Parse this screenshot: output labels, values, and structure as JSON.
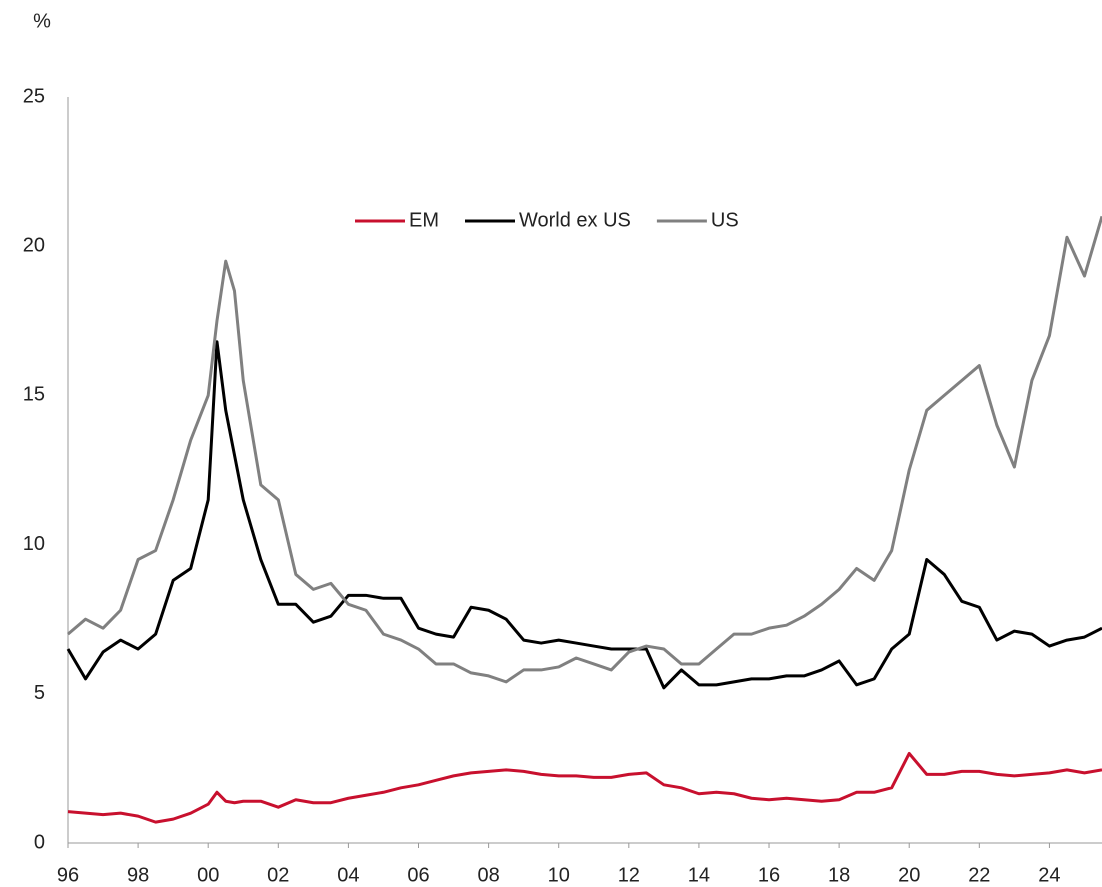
{
  "chart_data": {
    "type": "line",
    "y_label": "%",
    "x": [
      1996,
      1996.5,
      1997,
      1997.5,
      1998,
      1998.5,
      1999,
      1999.5,
      2000,
      2000.25,
      2000.5,
      2000.75,
      2001,
      2001.5,
      2002,
      2002.5,
      2003,
      2003.5,
      2004,
      2004.5,
      2005,
      2005.5,
      2006,
      2006.5,
      2007,
      2007.5,
      2008,
      2008.5,
      2009,
      2009.5,
      2010,
      2010.5,
      2011,
      2011.5,
      2012,
      2012.5,
      2013,
      2013.5,
      2014,
      2014.5,
      2015,
      2015.5,
      2016,
      2016.5,
      2017,
      2017.5,
      2018,
      2018.5,
      2019,
      2019.5,
      2020,
      2020.5,
      2021,
      2021.5,
      2022,
      2022.5,
      2023,
      2023.5,
      2024,
      2024.5,
      2025,
      2025.5
    ],
    "series": [
      {
        "name": "EM",
        "color": "#c8102e",
        "values": [
          1.05,
          1.0,
          0.95,
          1.0,
          0.9,
          0.7,
          0.8,
          1.0,
          1.3,
          1.7,
          1.4,
          1.35,
          1.4,
          1.4,
          1.2,
          1.45,
          1.35,
          1.35,
          1.5,
          1.6,
          1.7,
          1.85,
          1.95,
          2.1,
          2.25,
          2.35,
          2.4,
          2.45,
          2.4,
          2.3,
          2.25,
          2.25,
          2.2,
          2.2,
          2.3,
          2.35,
          1.95,
          1.85,
          1.65,
          1.7,
          1.65,
          1.5,
          1.45,
          1.5,
          1.45,
          1.4,
          1.45,
          1.7,
          1.7,
          1.85,
          3.0,
          2.3,
          2.3,
          2.4,
          2.4,
          2.3,
          2.25,
          2.3,
          2.35,
          2.45,
          2.35,
          2.45
        ]
      },
      {
        "name": "World ex US",
        "color": "#000000",
        "values": [
          6.5,
          5.5,
          6.4,
          6.8,
          6.5,
          7.0,
          8.8,
          9.2,
          11.5,
          16.8,
          14.5,
          13.0,
          11.5,
          9.5,
          8.0,
          8.0,
          7.4,
          7.6,
          8.3,
          8.3,
          8.2,
          8.2,
          7.2,
          7.0,
          6.9,
          7.9,
          7.8,
          7.5,
          6.8,
          6.7,
          6.8,
          6.7,
          6.6,
          6.5,
          6.5,
          6.5,
          5.2,
          5.8,
          5.3,
          5.3,
          5.4,
          5.5,
          5.5,
          5.6,
          5.6,
          5.8,
          6.1,
          5.3,
          5.5,
          6.5,
          7.0,
          9.5,
          9.0,
          8.1,
          7.9,
          6.8,
          7.1,
          7.0,
          6.6,
          6.8,
          6.9,
          7.2
        ]
      },
      {
        "name": "US",
        "color": "#808080",
        "values": [
          7.0,
          7.5,
          7.2,
          7.8,
          9.5,
          9.8,
          11.5,
          13.5,
          15.0,
          17.5,
          19.5,
          18.5,
          15.5,
          12.0,
          11.5,
          9.0,
          8.5,
          8.7,
          8.0,
          7.8,
          7.0,
          6.8,
          6.5,
          6.0,
          6.0,
          5.7,
          5.6,
          5.4,
          5.8,
          5.8,
          5.9,
          6.2,
          6.0,
          5.8,
          6.4,
          6.6,
          6.5,
          6.0,
          6.0,
          6.5,
          7.0,
          7.0,
          7.2,
          7.3,
          7.6,
          8.0,
          8.5,
          9.2,
          8.8,
          9.8,
          12.5,
          14.5,
          15.0,
          15.5,
          16.0,
          14.0,
          12.6,
          15.5,
          17.0,
          20.3,
          19.0,
          21.0
        ]
      }
    ],
    "xlim": [
      1996,
      2025.5
    ],
    "xticks": [
      {
        "value": 1996,
        "label": "96"
      },
      {
        "value": 1998,
        "label": "98"
      },
      {
        "value": 2000,
        "label": "00"
      },
      {
        "value": 2002,
        "label": "02"
      },
      {
        "value": 2004,
        "label": "04"
      },
      {
        "value": 2006,
        "label": "06"
      },
      {
        "value": 2008,
        "label": "08"
      },
      {
        "value": 2010,
        "label": "10"
      },
      {
        "value": 2012,
        "label": "12"
      },
      {
        "value": 2014,
        "label": "14"
      },
      {
        "value": 2016,
        "label": "16"
      },
      {
        "value": 2018,
        "label": "18"
      },
      {
        "value": 2020,
        "label": "20"
      },
      {
        "value": 2022,
        "label": "22"
      },
      {
        "value": 2024,
        "label": "24"
      }
    ],
    "ylim": [
      0,
      25
    ],
    "yticks": [
      0,
      5,
      10,
      15,
      20,
      25
    ],
    "grid": false,
    "legend": "top"
  }
}
